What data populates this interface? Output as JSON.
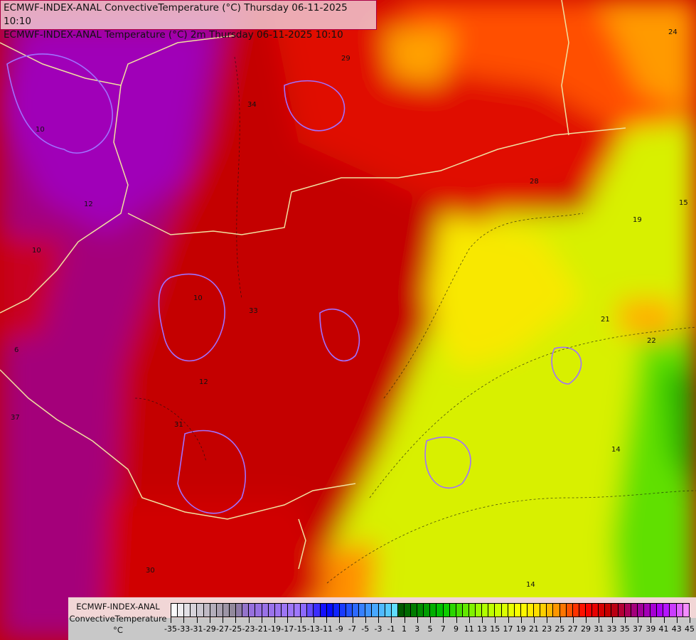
{
  "title_lines": [
    "ECMWF-INDEX-ANAL ConvectiveTemperature (°C) Thursday 06-11-2025 10:10",
    "ECMWF-INDEX-ANAL Temperature (°C) 2m Thursday 06-11-2025 10:10"
  ],
  "legend": {
    "model": "ECMWF-INDEX-ANAL",
    "parameter": "ConvectiveTemperature",
    "unit": "°C",
    "range": [
      -35,
      45
    ],
    "tick_labels": [
      "-35",
      "-33",
      "-31",
      "-29",
      "-27",
      "-25",
      "-23",
      "-21",
      "-19",
      "-17",
      "-15",
      "-13",
      "-11",
      "-9",
      "-7",
      "-5",
      "-3",
      "-1",
      "1",
      "3",
      "5",
      "7",
      "9",
      "11",
      "13",
      "15",
      "17",
      "19",
      "21",
      "23",
      "25",
      "27",
      "29",
      "31",
      "33",
      "35",
      "37",
      "39",
      "41",
      "43",
      "45"
    ]
  },
  "contour_labels": [
    "10",
    "12",
    "10",
    "31",
    "33",
    "37",
    "30",
    "34",
    "29",
    "24",
    "28",
    "15",
    "19",
    "21",
    "22",
    "14",
    "14",
    "6",
    "10",
    "12"
  ],
  "colors": {
    "magenta": "#a0008c",
    "dark_red": "#c40000",
    "red": "#e80000",
    "orange": "#ff7a00",
    "yellow": "#f0f000",
    "yellow_green": "#c8f000",
    "green": "#30d000",
    "isotherm": "#a070ff",
    "border": "#f0e0a0"
  }
}
